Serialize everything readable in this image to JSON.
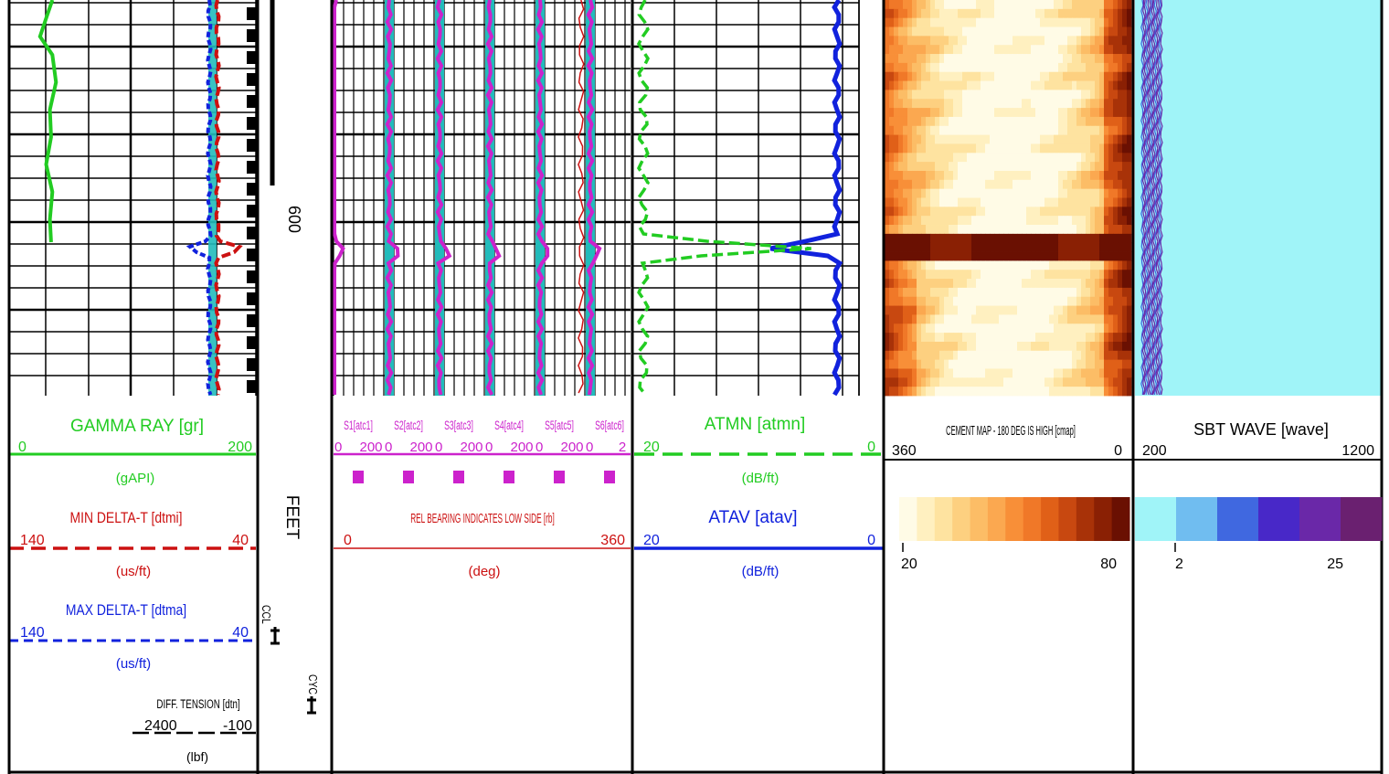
{
  "tracks": {
    "gr": {
      "title": "GAMMA RAY  [gr]",
      "min": "0",
      "max": "200",
      "unit": "(gAPI)",
      "color": "#22cc22"
    },
    "mindt": {
      "title": "MIN DELTA-T  [dtmi]",
      "min": "140",
      "max": "40",
      "unit": "(us/ft)",
      "color": "#cc1111"
    },
    "maxdt": {
      "title": "MAX DELTA-T  [dtma]",
      "min": "140",
      "max": "40",
      "unit": "(us/ft)",
      "color": "#1122dd"
    },
    "tension": {
      "title": "DIFF. TENSION [dtn]",
      "min": "2400",
      "max": "-100",
      "unit": "(lbf)"
    },
    "depth": {
      "label": "FEET",
      "marker": "600",
      "ccl": "CCL",
      "cyc": "CYC"
    },
    "sectors": {
      "labels": [
        "S1[atc1]",
        "S2[atc2]",
        "S3[atc3]",
        "S4[atc4]",
        "S5[atc5]",
        "S6[atc6]"
      ],
      "scale_min": "0",
      "scale_max": "200",
      "last_max": "2",
      "relb_title": "REL BEARING INDICATES LOW SIDE [rb]",
      "relb_min": "0",
      "relb_max": "360",
      "relb_unit": "(deg)",
      "color": "#cc22cc"
    },
    "atmn": {
      "title": "ATMN  [atmn]",
      "min": "20",
      "max": "0",
      "unit": "(dB/ft)",
      "color": "#22cc22"
    },
    "atav": {
      "title": "ATAV  [atav]",
      "min": "20",
      "max": "0",
      "unit": "(dB/ft)",
      "color": "#1122dd"
    },
    "cement": {
      "title": "CEMENT MAP - 180 DEG IS HIGH [cmap]",
      "min": "360",
      "max": "0",
      "legend_min": "20",
      "legend_max": "80",
      "palette": [
        "#fffbe6",
        "#fff0c0",
        "#fee3a0",
        "#fdd080",
        "#fcbd66",
        "#fba850",
        "#f88f38",
        "#f07828",
        "#e06018",
        "#c84810",
        "#a83208",
        "#8a2004",
        "#6a1002"
      ]
    },
    "sbt": {
      "title": "SBT WAVE [wave]",
      "min": "200",
      "max": "1200",
      "legend_min": "2",
      "legend_max": "25",
      "palette": [
        "#a0f4f8",
        "#70bdf0",
        "#4068e0",
        "#4828c8",
        "#6a28a8",
        "#6a2070"
      ]
    }
  },
  "chart_data": {
    "type": "line",
    "gamma_ray": [
      {
        "y": 0,
        "x": 35
      },
      {
        "y": 20,
        "x": 30
      },
      {
        "y": 40,
        "x": 25
      },
      {
        "y": 60,
        "x": 35
      },
      {
        "y": 90,
        "x": 38
      },
      {
        "y": 120,
        "x": 33
      },
      {
        "y": 150,
        "x": 34
      },
      {
        "y": 180,
        "x": 30
      },
      {
        "y": 210,
        "x": 35
      },
      {
        "y": 240,
        "x": 33
      },
      {
        "y": 265,
        "x": 34
      }
    ],
    "bearing_deg": 300,
    "anomaly_depth_label": "600"
  }
}
